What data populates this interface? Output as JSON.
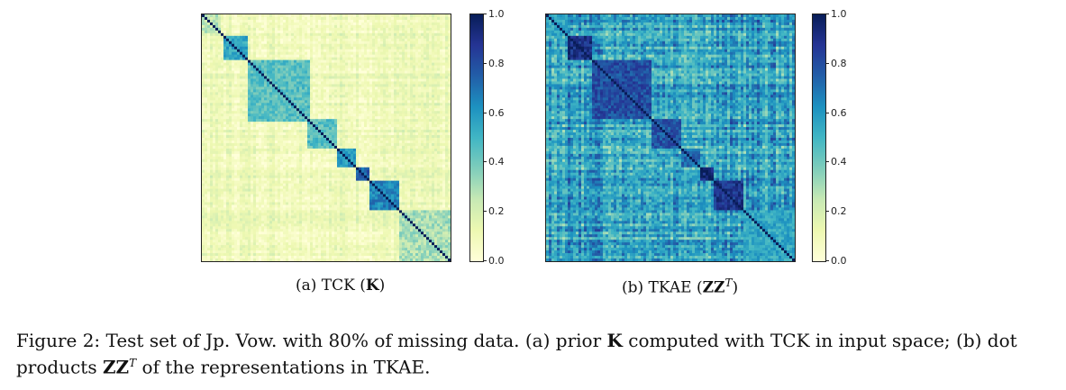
{
  "panels": [
    {
      "id": "a",
      "label_prefix": "(a) TCK (",
      "label_bold": "K",
      "label_suffix": ")",
      "colormap": "YlGnBu",
      "background_level": 0.08
    },
    {
      "id": "b",
      "label_prefix": "(b) TKAE (",
      "label_bold": "ZZ",
      "label_sup": "T",
      "label_suffix": ")",
      "colormap": "YlGnBu",
      "background_level": 0.5
    }
  ],
  "colorbar": {
    "ticks": [
      "0.0",
      "0.2",
      "0.4",
      "0.6",
      "0.8",
      "1.0"
    ],
    "colors": [
      "#ffffd9",
      "#edf8b1",
      "#c7e9b4",
      "#7fcdbb",
      "#41b6c4",
      "#1d91c0",
      "#225ea8",
      "#253494",
      "#081d58"
    ]
  },
  "caption": {
    "prefix": "Figure 2: Test set of Jp. Vow. with 80% of missing data. (a) prior ",
    "bold1": "K",
    "middle": " computed with TCK in input space; (b) dot products ",
    "bold2": "ZZ",
    "sup": "T",
    "suffix": " of the representations in TKAE."
  }
}
